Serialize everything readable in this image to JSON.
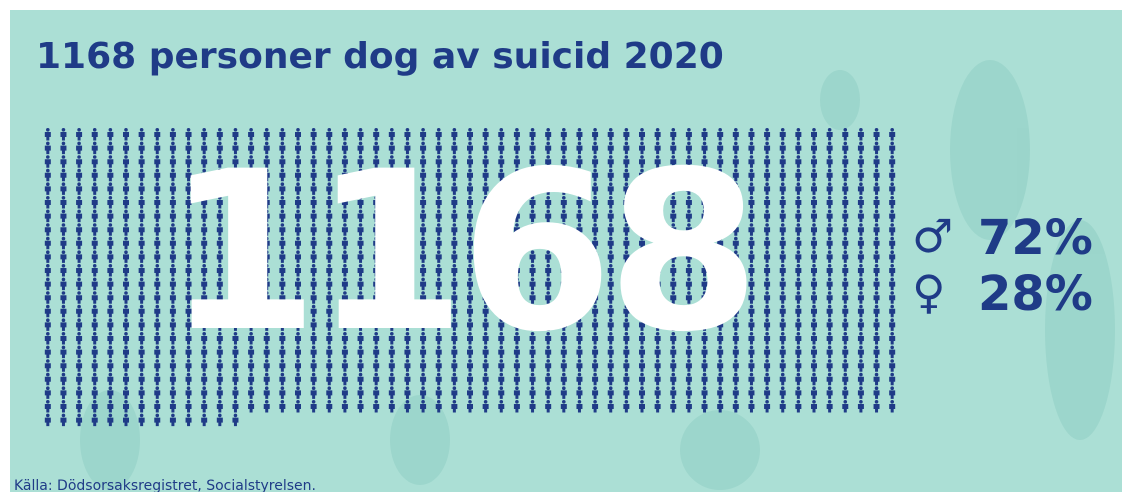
{
  "title": "1168 personer dog av suicid 2020",
  "count": 1168,
  "gender": [
    {
      "symbol": "♂",
      "share": "72%"
    },
    {
      "symbol": "♀",
      "share": "28%"
    }
  ],
  "source": "Källa: Dödsorsaksregistret, Socialstyrelsen."
}
